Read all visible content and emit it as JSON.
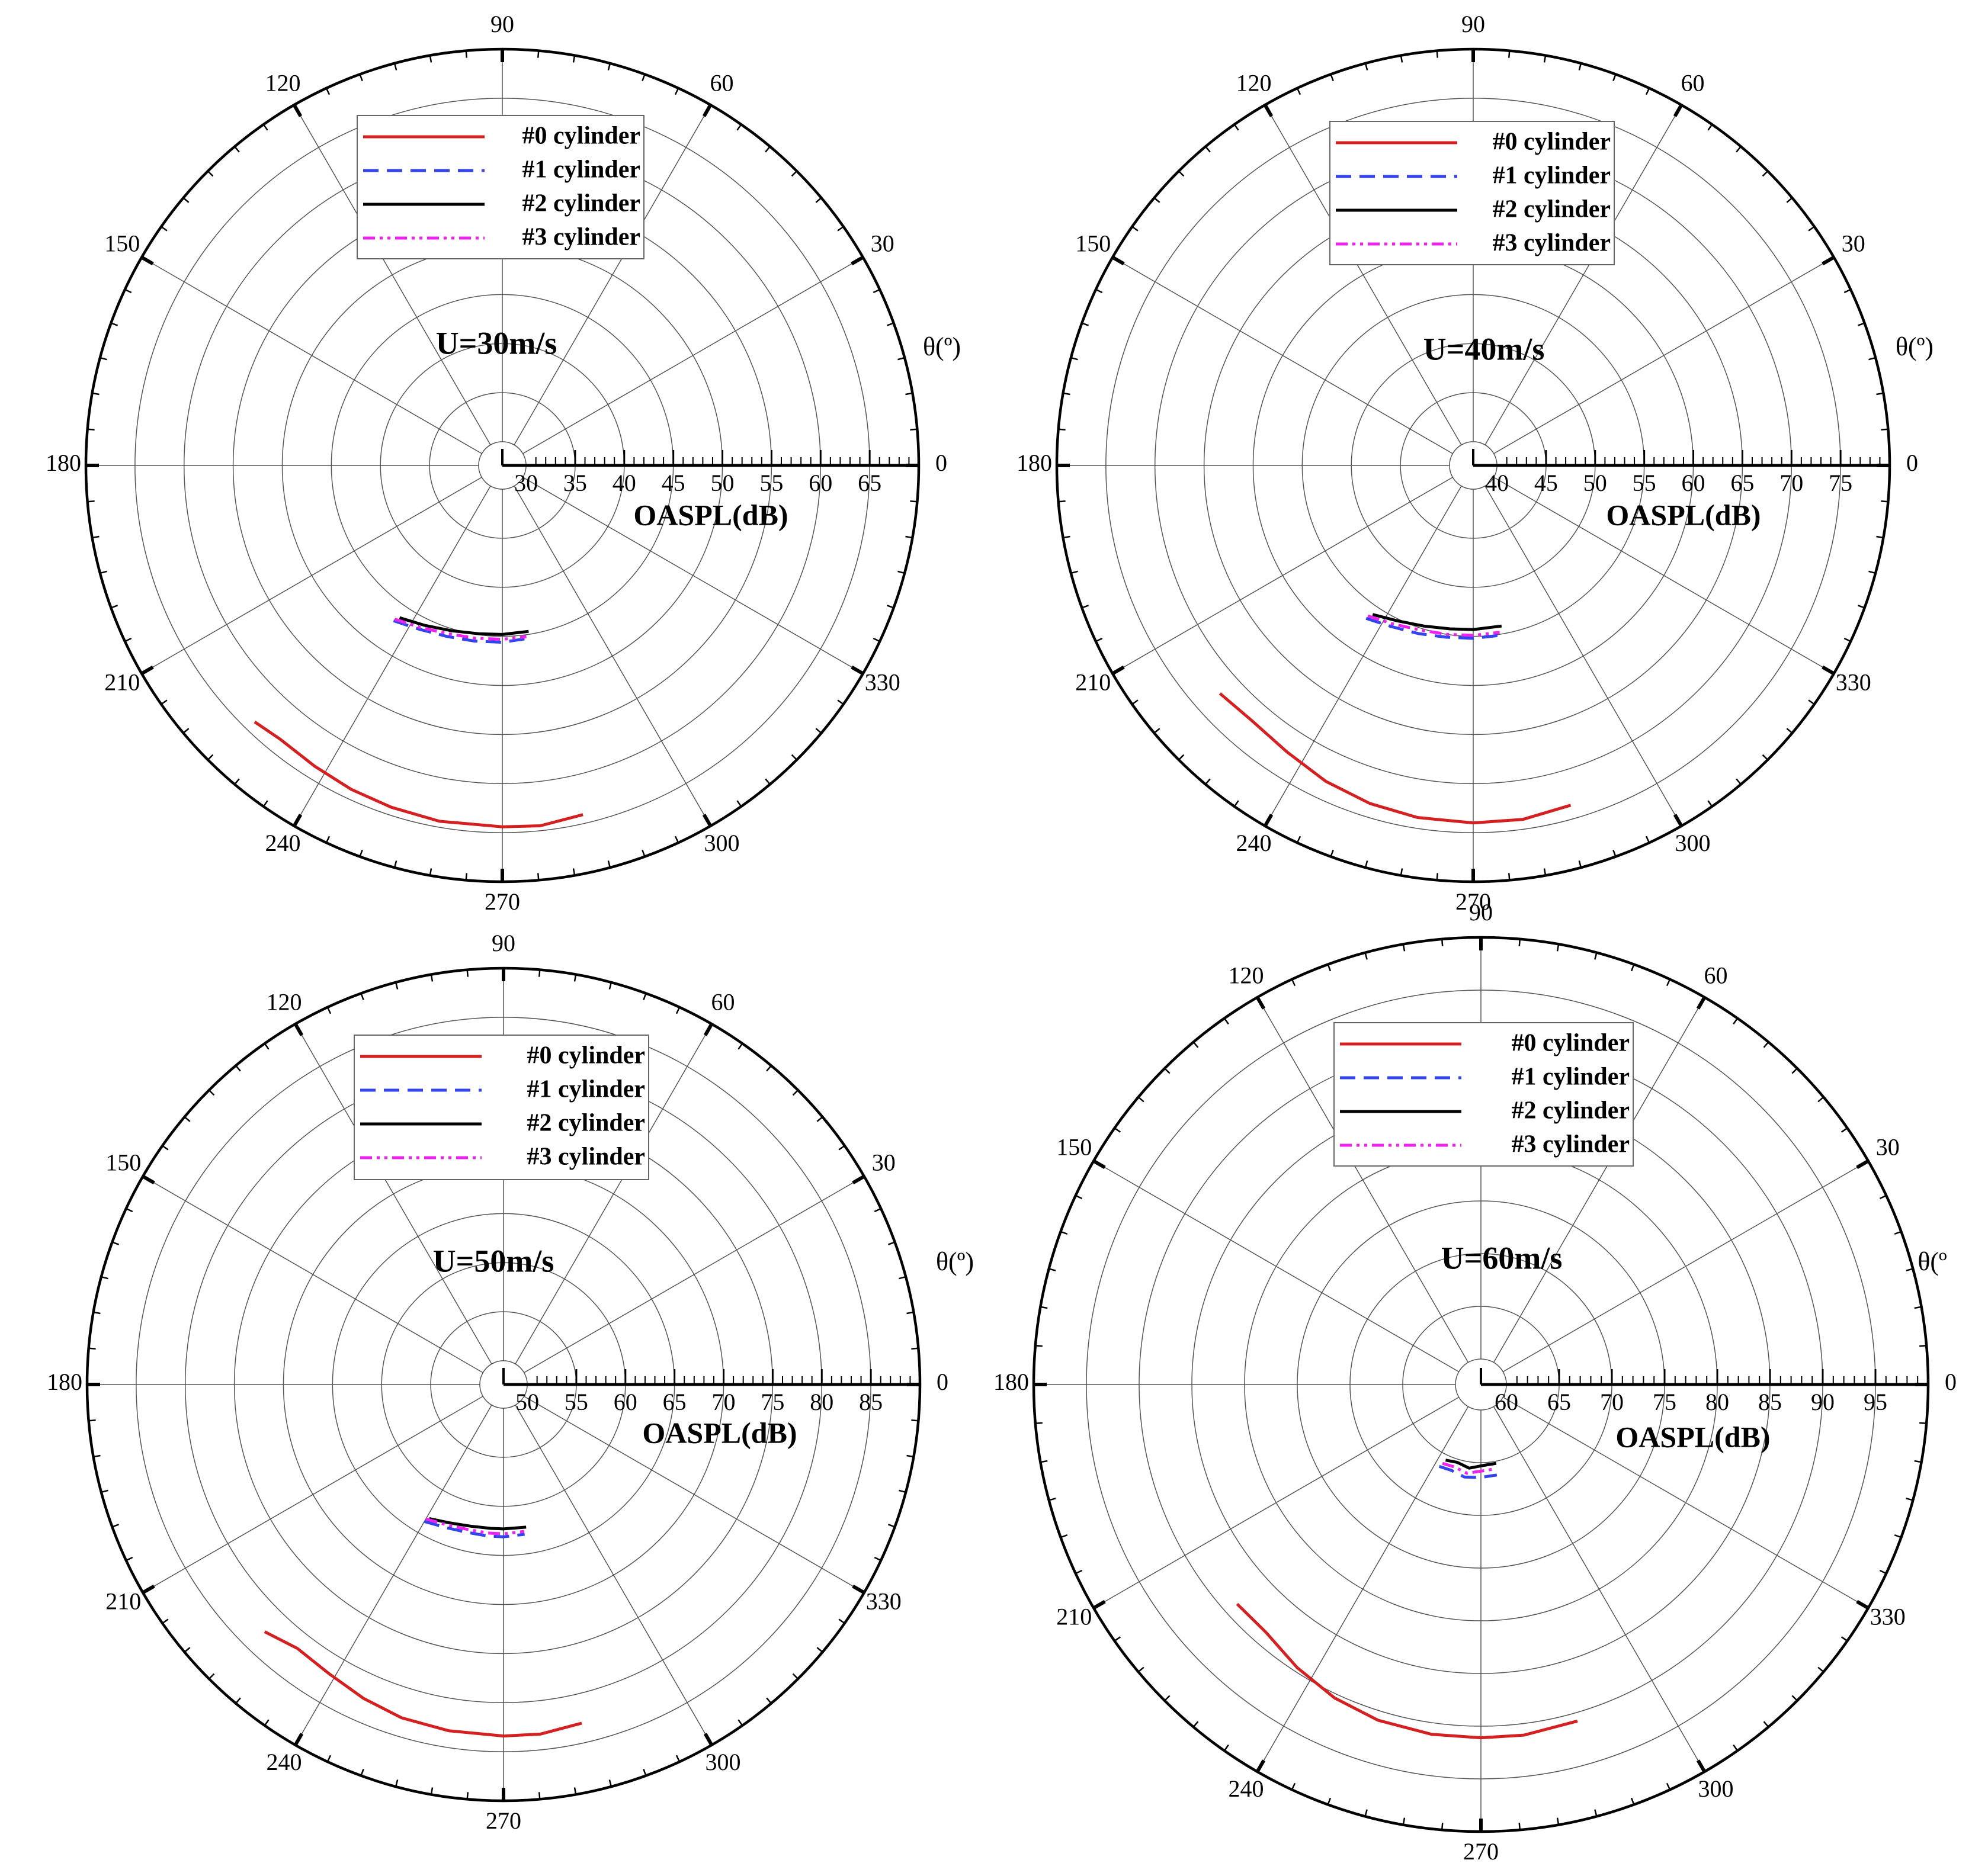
{
  "colors": {
    "#0 cylinder": "#d42020",
    "#1 cylinder": "#3344ee",
    "#2 cylinder": "#000000",
    "#3 cylinder": "#ee22ee"
  },
  "chart_data": [
    {
      "type": "polar-line",
      "annotation": "U=30m/s",
      "r_axis_label": "OASPL(dB)",
      "theta_label": "θ(º)",
      "r_range": [
        30,
        70
      ],
      "r_ticks": [
        "30",
        "35",
        "40",
        "45",
        "50",
        "55",
        "60",
        "65"
      ],
      "theta_ticks": [
        "0",
        "30",
        "60",
        "90",
        "120",
        "150",
        "180",
        "210",
        "240",
        "270",
        "300",
        "330"
      ],
      "legend": [
        "#0 cylinder",
        "#1 cylinder",
        "#2 cylinder",
        "#3 cylinder"
      ],
      "series": [
        {
          "name": "#0 cylinder",
          "theta": [
            226,
            231,
            238,
            245,
            252,
            260,
            270,
            276,
            283
          ],
          "r": [
            63.9,
            63.5,
            63.7,
            64.0,
            64.2,
            64.4,
            64.4,
            64.5,
            64.1
          ]
        },
        {
          "name": "#1 cylinder",
          "theta": [
            235,
            243,
            252,
            261,
            270,
            278
          ],
          "r": [
            46.9,
            46.3,
            45.9,
            45.7,
            45.6,
            45.4
          ]
        },
        {
          "name": "#2 cylinder",
          "theta": [
            236,
            244,
            253,
            262,
            270,
            279
          ],
          "r": [
            46.3,
            45.7,
            45.2,
            44.9,
            44.8,
            44.7
          ]
        },
        {
          "name": "#3 cylinder",
          "theta": [
            235,
            243,
            252,
            261,
            270,
            278
          ],
          "r": [
            46.7,
            46.1,
            45.6,
            45.4,
            45.3,
            45.2
          ]
        }
      ]
    },
    {
      "type": "polar-line",
      "annotation": "U=40m/s",
      "r_axis_label": "OASPL(dB)",
      "theta_label": "θ(º)",
      "r_range": [
        40,
        80
      ],
      "r_ticks": [
        "40",
        "45",
        "50",
        "55",
        "60",
        "65",
        "70",
        "75"
      ],
      "theta_ticks": [
        "0",
        "30",
        "60",
        "90",
        "120",
        "150",
        "180",
        "210",
        "240",
        "270",
        "300",
        "330"
      ],
      "legend": [
        "#0 cylinder",
        "#1 cylinder",
        "#2 cylinder",
        "#3 cylinder"
      ],
      "series": [
        {
          "name": "#0 cylinder",
          "theta": [
            222,
            229,
            237,
            245,
            253,
            261,
            270,
            278,
            286
          ],
          "r": [
            72.3,
            72.0,
            72.4,
            73.1,
            73.6,
            73.9,
            74.0,
            74.0,
            73.6
          ]
        },
        {
          "name": "#1 cylinder",
          "theta": [
            235,
            243,
            252,
            261,
            270,
            279
          ],
          "r": [
            56.6,
            56.0,
            55.6,
            55.3,
            55.2,
            55.1
          ]
        },
        {
          "name": "#2 cylinder",
          "theta": [
            236,
            244,
            253,
            262,
            270,
            280
          ],
          "r": [
            55.9,
            55.2,
            54.7,
            54.4,
            54.3,
            54.2
          ]
        },
        {
          "name": "#3 cylinder",
          "theta": [
            235,
            243,
            252,
            261,
            270,
            279
          ],
          "r": [
            56.3,
            55.7,
            55.2,
            55.0,
            54.9,
            54.8
          ]
        }
      ]
    },
    {
      "type": "polar-line",
      "annotation": "U=50m/s",
      "r_axis_label": "OASPL(dB)",
      "theta_label": "θ(º)",
      "r_range": [
        50,
        90
      ],
      "r_ticks": [
        "50",
        "55",
        "60",
        "65",
        "70",
        "75",
        "80",
        "85"
      ],
      "theta_ticks": [
        "0",
        "30",
        "60",
        "90",
        "120",
        "150",
        "180",
        "210",
        "240",
        "270",
        "300",
        "330"
      ],
      "legend": [
        "#0 cylinder",
        "#1 cylinder",
        "#2 cylinder",
        "#3 cylinder"
      ],
      "series": [
        {
          "name": "#0 cylinder",
          "theta": [
            226,
            232,
            239,
            246,
            253,
            261,
            270,
            276,
            283
          ],
          "r": [
            82.6,
            81.7,
            82.0,
            82.6,
            83.1,
            83.3,
            83.4,
            83.4,
            83.0
          ]
        },
        {
          "name": "#1 cylinder",
          "theta": [
            240,
            248,
            256,
            264,
            270,
            278
          ],
          "r": [
            63.7,
            63.3,
            63.1,
            63.1,
            63.1,
            63.0
          ]
        },
        {
          "name": "#2 cylinder",
          "theta": [
            241,
            249,
            257,
            265,
            270,
            279
          ],
          "r": [
            63.2,
            62.7,
            62.4,
            62.3,
            62.3,
            62.3
          ]
        },
        {
          "name": "#3 cylinder",
          "theta": [
            240,
            248,
            256,
            264,
            270,
            278
          ],
          "r": [
            63.4,
            63.0,
            62.8,
            62.8,
            62.8,
            62.7
          ]
        }
      ]
    },
    {
      "type": "polar-line",
      "annotation": "U=60m/s",
      "r_axis_label": "OASPL(dB)",
      "theta_label": "θ(º",
      "r_range": [
        60,
        100
      ],
      "r_ticks": [
        "60",
        "65",
        "70",
        "75",
        "80",
        "85",
        "90",
        "95"
      ],
      "theta_ticks": [
        "0",
        "30",
        "60",
        "90",
        "120",
        "150",
        "180",
        "210",
        "240",
        "270",
        "300",
        "330"
      ],
      "legend": [
        "#0 cylinder",
        "#1 cylinder",
        "#2 cylinder",
        "#3 cylinder"
      ],
      "series": [
        {
          "name": "#0 cylinder",
          "theta": [
            222,
            229,
            237,
            245,
            253,
            262,
            270,
            277,
            286
          ],
          "r": [
            88.7,
            88.7,
            89.6,
            90.4,
            90.9,
            91.1,
            91.1,
            91.1,
            90.8
          ]
        },
        {
          "name": "#1 cylinder",
          "theta": [
            243,
            251,
            260,
            270,
            280
          ],
          "r": [
            66.3,
            66.2,
            66.5,
            66.4,
            66.3
          ]
        },
        {
          "name": "#2 cylinder",
          "theta": [
            245,
            253,
            262,
            270,
            281
          ],
          "r": [
            65.5,
            65.3,
            65.6,
            65.3,
            65.2
          ]
        },
        {
          "name": "#3 cylinder",
          "theta": [
            244,
            252,
            261,
            270,
            280
          ],
          "r": [
            65.9,
            65.8,
            66.1,
            65.8,
            65.7
          ]
        }
      ]
    }
  ]
}
